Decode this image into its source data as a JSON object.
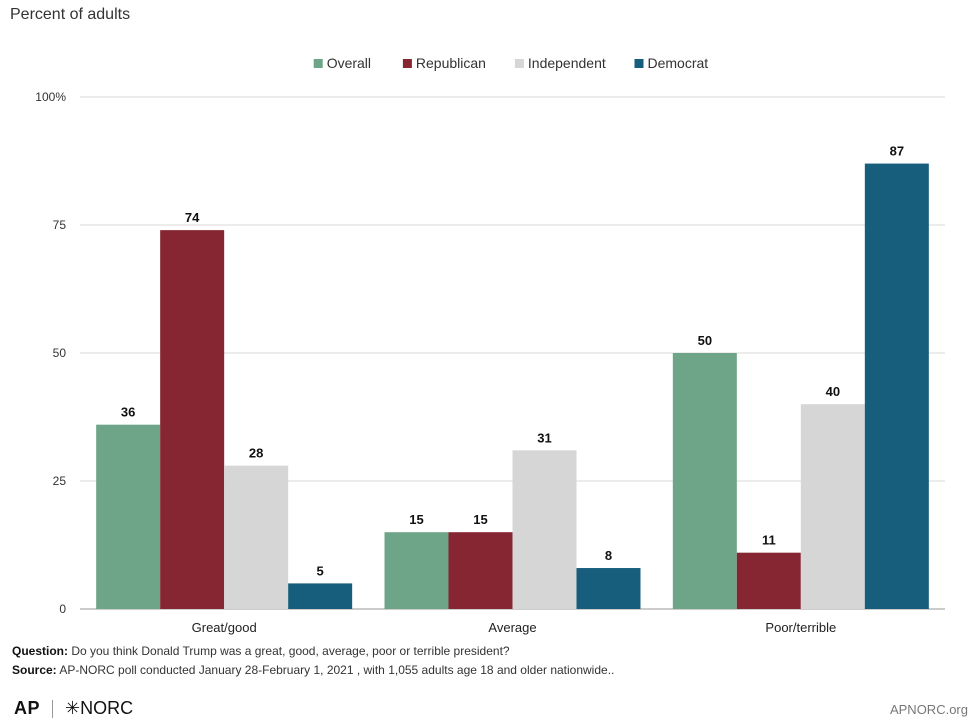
{
  "subtitle": "Percent of adults",
  "footnotes": {
    "question_label": "Question:",
    "question_text": " Do you think Donald Trump was a great, good, average, poor or terrible president?",
    "source_label": "Source:",
    "source_text": " AP-NORC poll conducted January 28-February 1, 2021 , with 1,055 adults age 18 and older nationwide.."
  },
  "branding": {
    "ap": "AP",
    "norc": "✳NORC",
    "site": "APNORC.org"
  },
  "chart_data": {
    "type": "bar",
    "categories": [
      "Great/good",
      "Average",
      "Poor/terrible"
    ],
    "series": [
      {
        "name": "Overall",
        "color": "#6ea488",
        "values": [
          36,
          15,
          50
        ]
      },
      {
        "name": "Republican",
        "color": "#862633",
        "values": [
          74,
          15,
          11
        ]
      },
      {
        "name": "Independent",
        "color": "#d6d6d6",
        "values": [
          28,
          31,
          40
        ]
      },
      {
        "name": "Democrat",
        "color": "#175d7c",
        "values": [
          5,
          8,
          87
        ]
      }
    ],
    "ylim": [
      0,
      100
    ],
    "yticks": [
      0,
      25,
      50,
      75,
      100
    ],
    "ytick_labels": [
      "0",
      "25",
      "50",
      "75",
      "100%"
    ],
    "grid": true,
    "legend_position": "top-center"
  }
}
